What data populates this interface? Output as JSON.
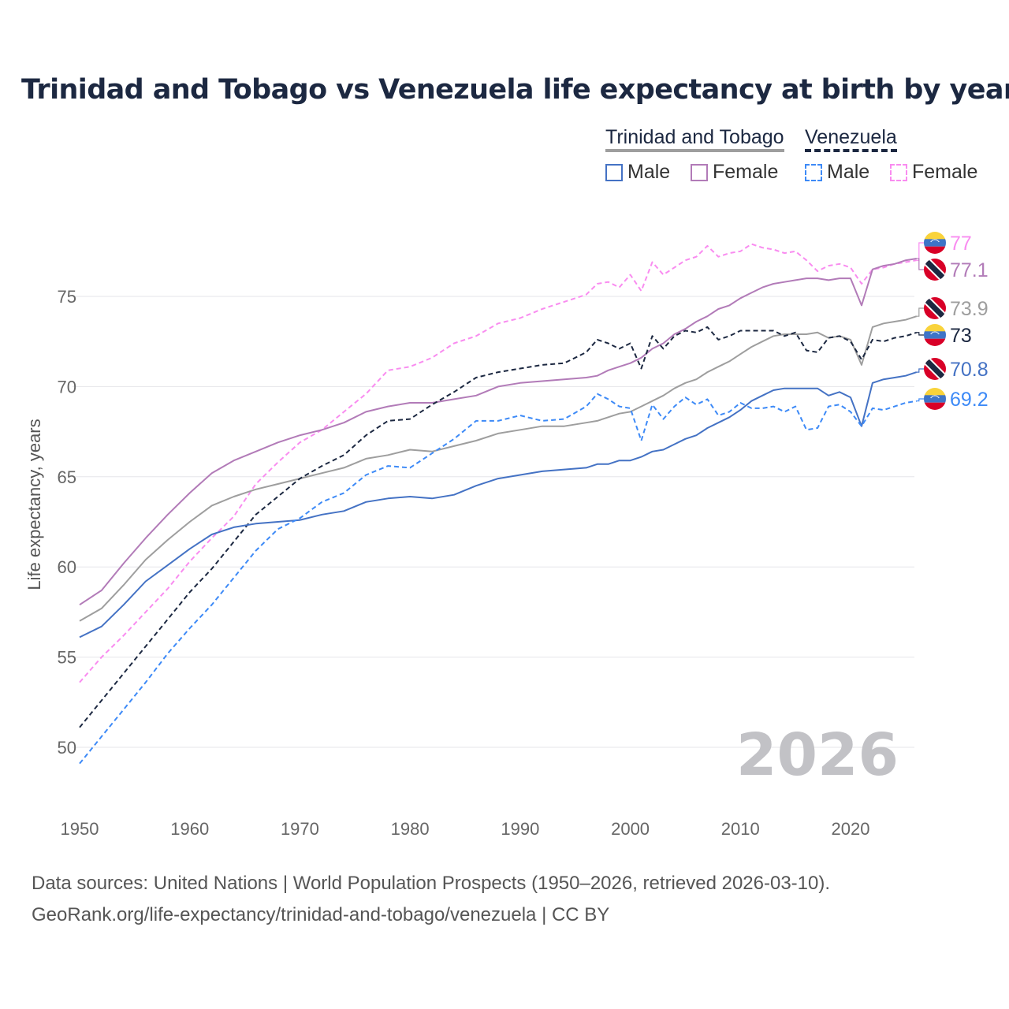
{
  "chart_data": {
    "type": "line",
    "title": "Trinidad and Tobago vs Venezuela life expectancy at birth by year",
    "xlabel": "",
    "ylabel": "Life expectancy, years",
    "xlim": [
      1950,
      2026
    ],
    "ylim": [
      47.5,
      79
    ],
    "x_ticks": [
      "1950",
      "1960",
      "1970",
      "1980",
      "1990",
      "2000",
      "2010",
      "2020"
    ],
    "y_ticks": [
      "50",
      "55",
      "60",
      "65",
      "70",
      "75"
    ],
    "grid": true,
    "year_watermark": "2026",
    "legend": {
      "placement": "top-right",
      "groups": [
        {
          "label": "Trinidad and Tobago",
          "items": [
            "Male",
            "Female"
          ]
        },
        {
          "label": "Venezuela",
          "items": [
            "Male",
            "Female"
          ]
        }
      ]
    },
    "x": [
      1950,
      1952,
      1954,
      1956,
      1958,
      1960,
      1962,
      1964,
      1966,
      1968,
      1970,
      1972,
      1974,
      1976,
      1978,
      1980,
      1982,
      1984,
      1986,
      1988,
      1990,
      1992,
      1994,
      1996,
      1997,
      1998,
      1999,
      2000,
      2001,
      2002,
      2003,
      2004,
      2005,
      2006,
      2007,
      2008,
      2009,
      2010,
      2011,
      2012,
      2013,
      2014,
      2015,
      2016,
      2017,
      2018,
      2019,
      2020,
      2021,
      2022,
      2023,
      2024,
      2025,
      2026
    ],
    "series": [
      {
        "name": "Venezuela Female",
        "country": "Venezuela",
        "sex": "Female",
        "color": "#f98cf0",
        "dashed": true,
        "end_label": "77",
        "values": [
          53.6,
          55.0,
          56.2,
          57.5,
          58.8,
          60.3,
          61.6,
          62.8,
          64.6,
          65.8,
          66.9,
          67.6,
          68.6,
          69.6,
          70.9,
          71.1,
          71.6,
          72.4,
          72.8,
          73.5,
          73.8,
          74.3,
          74.7,
          75.1,
          75.7,
          75.8,
          75.5,
          76.2,
          75.3,
          76.9,
          76.2,
          76.6,
          77.0,
          77.2,
          77.8,
          77.2,
          77.4,
          77.5,
          77.9,
          77.7,
          77.6,
          77.4,
          77.5,
          77.0,
          76.4,
          76.7,
          76.8,
          76.6,
          75.7,
          76.5,
          76.6,
          76.8,
          76.9,
          77.0
        ]
      },
      {
        "name": "Trinidad and Tobago Female",
        "country": "Trinidad and Tobago",
        "sex": "Female",
        "color": "#b27bb8",
        "dashed": false,
        "end_label": "77.1",
        "values": [
          57.9,
          58.7,
          60.2,
          61.6,
          62.9,
          64.1,
          65.2,
          65.9,
          66.4,
          66.9,
          67.3,
          67.6,
          68.0,
          68.6,
          68.9,
          69.1,
          69.1,
          69.3,
          69.5,
          70.0,
          70.2,
          70.3,
          70.4,
          70.5,
          70.6,
          70.9,
          71.1,
          71.3,
          71.6,
          72.1,
          72.4,
          72.9,
          73.2,
          73.6,
          73.9,
          74.3,
          74.5,
          74.9,
          75.2,
          75.5,
          75.7,
          75.8,
          75.9,
          76.0,
          76.0,
          75.9,
          76.0,
          76.0,
          74.5,
          76.5,
          76.7,
          76.8,
          77.0,
          77.1
        ]
      },
      {
        "name": "Trinidad and Tobago",
        "country": "Trinidad and Tobago",
        "sex": "Total",
        "color": "#9e9e9e",
        "dashed": false,
        "end_label": "73.9",
        "values": [
          57.0,
          57.7,
          59.0,
          60.4,
          61.5,
          62.5,
          63.4,
          63.9,
          64.3,
          64.6,
          64.9,
          65.2,
          65.5,
          66.0,
          66.2,
          66.5,
          66.4,
          66.7,
          67.0,
          67.4,
          67.6,
          67.8,
          67.8,
          68.0,
          68.1,
          68.3,
          68.5,
          68.6,
          68.9,
          69.2,
          69.5,
          69.9,
          70.2,
          70.4,
          70.8,
          71.1,
          71.4,
          71.8,
          72.2,
          72.5,
          72.8,
          72.9,
          72.9,
          72.9,
          73.0,
          72.7,
          72.8,
          72.6,
          71.2,
          73.3,
          73.5,
          73.6,
          73.7,
          73.9
        ]
      },
      {
        "name": "Venezuela",
        "country": "Venezuela",
        "sex": "Total",
        "color": "#1c2841",
        "dashed": true,
        "end_label": "73",
        "values": [
          51.1,
          52.6,
          54.1,
          55.6,
          57.1,
          58.6,
          59.9,
          61.4,
          62.9,
          63.9,
          64.9,
          65.6,
          66.2,
          67.3,
          68.1,
          68.2,
          69.0,
          69.7,
          70.5,
          70.8,
          71.0,
          71.2,
          71.3,
          71.9,
          72.6,
          72.4,
          72.1,
          72.4,
          71.0,
          72.8,
          72.1,
          72.8,
          73.1,
          73.0,
          73.3,
          72.6,
          72.8,
          73.1,
          73.1,
          73.1,
          73.1,
          72.8,
          73.0,
          72.0,
          71.9,
          72.7,
          72.8,
          72.5,
          71.5,
          72.6,
          72.5,
          72.7,
          72.8,
          73.0
        ]
      },
      {
        "name": "Trinidad and Tobago Male",
        "country": "Trinidad and Tobago",
        "sex": "Male",
        "color": "#4472c4",
        "dashed": false,
        "end_label": "70.8",
        "values": [
          56.1,
          56.7,
          57.9,
          59.2,
          60.1,
          61.0,
          61.8,
          62.2,
          62.4,
          62.5,
          62.6,
          62.9,
          63.1,
          63.6,
          63.8,
          63.9,
          63.8,
          64.0,
          64.5,
          64.9,
          65.1,
          65.3,
          65.4,
          65.5,
          65.7,
          65.7,
          65.9,
          65.9,
          66.1,
          66.4,
          66.5,
          66.8,
          67.1,
          67.3,
          67.7,
          68.0,
          68.3,
          68.7,
          69.2,
          69.5,
          69.8,
          69.9,
          69.9,
          69.9,
          69.9,
          69.5,
          69.7,
          69.4,
          67.8,
          70.2,
          70.4,
          70.5,
          70.6,
          70.8
        ]
      },
      {
        "name": "Venezuela Male",
        "country": "Venezuela",
        "sex": "Male",
        "color": "#3d8af7",
        "dashed": true,
        "end_label": "69.2",
        "values": [
          49.1,
          50.6,
          52.1,
          53.6,
          55.2,
          56.6,
          57.9,
          59.4,
          60.9,
          62.1,
          62.7,
          63.6,
          64.1,
          65.1,
          65.6,
          65.5,
          66.3,
          67.1,
          68.1,
          68.1,
          68.4,
          68.1,
          68.2,
          68.9,
          69.6,
          69.3,
          68.9,
          68.8,
          67.0,
          69.0,
          68.2,
          68.9,
          69.4,
          69.0,
          69.3,
          68.4,
          68.6,
          69.1,
          68.8,
          68.8,
          68.9,
          68.6,
          68.9,
          67.6,
          67.7,
          68.9,
          69.0,
          68.6,
          67.8,
          68.8,
          68.7,
          68.9,
          69.1,
          69.2
        ]
      }
    ]
  },
  "legend": {
    "tt_group": "Trinidad and Tobago",
    "ve_group": "Venezuela",
    "tt_male": "Male",
    "tt_female": "Female",
    "ve_male": "Male",
    "ve_female": "Female"
  },
  "footer": {
    "sources": "Data sources: United Nations | World Population Prospects (1950–2026, retrieved 2026-03-10).",
    "link": "GeoRank.org/life-expectancy/trinidad-and-tobago/venezuela | CC BY"
  }
}
